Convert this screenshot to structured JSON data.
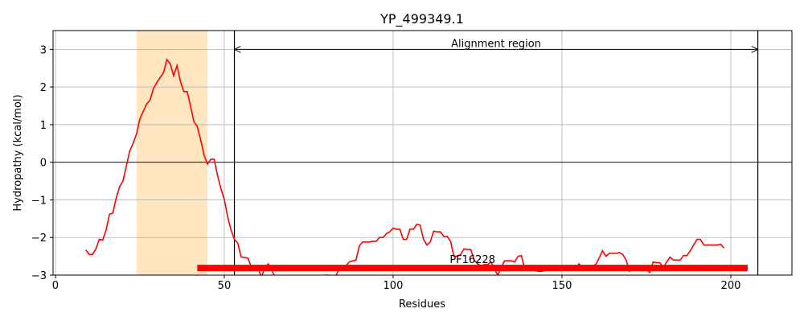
{
  "chart_data": {
    "type": "line",
    "title": "YP_499349.1",
    "x_label": "Residues",
    "y_label": "Hydropathy (kcal/mol)",
    "x": [
      9,
      10,
      11,
      12,
      13,
      14,
      15,
      16,
      17,
      18,
      19,
      20,
      21,
      22,
      23,
      24,
      25,
      26,
      27,
      28,
      29,
      30,
      31,
      32,
      33,
      34,
      35,
      36,
      37,
      38,
      39,
      40,
      41,
      42,
      43,
      44,
      45,
      46,
      47,
      48,
      49,
      50,
      51,
      52,
      53,
      54,
      55,
      56,
      57,
      58,
      59,
      60,
      61,
      62,
      63,
      64,
      65,
      66,
      67,
      68,
      69,
      70,
      71,
      72,
      73,
      74,
      75,
      76,
      77,
      78,
      79,
      80,
      81,
      82,
      83,
      84,
      85,
      86,
      87,
      88,
      89,
      90,
      91,
      92,
      93,
      94,
      95,
      96,
      97,
      98,
      99,
      100,
      101,
      102,
      103,
      104,
      105,
      106,
      107,
      108,
      109,
      110,
      111,
      112,
      113,
      114,
      115,
      116,
      117,
      118,
      119,
      120,
      121,
      122,
      123,
      124,
      125,
      126,
      127,
      128,
      129,
      130,
      131,
      132,
      133,
      134,
      135,
      136,
      137,
      138,
      139,
      140,
      141,
      142,
      143,
      144,
      145,
      146,
      147,
      148,
      149,
      150,
      151,
      152,
      153,
      154,
      155,
      156,
      157,
      158,
      159,
      160,
      161,
      162,
      163,
      164,
      165,
      166,
      167,
      168,
      169,
      170,
      171,
      172,
      173,
      174,
      175,
      176,
      177,
      178,
      179,
      180,
      181,
      182,
      183,
      184,
      185,
      186,
      187,
      188,
      189,
      190,
      191,
      192,
      193,
      194,
      195,
      196,
      197,
      198
    ],
    "series": [
      {
        "color": "#ff0000",
        "values": [
          -2.33,
          -2.45,
          -2.45,
          -2.3,
          -2.05,
          -2.07,
          -1.8,
          -1.38,
          -1.35,
          -0.95,
          -0.65,
          -0.5,
          -0.1,
          0.3,
          0.5,
          0.75,
          1.15,
          1.35,
          1.55,
          1.65,
          1.95,
          2.12,
          2.25,
          2.38,
          2.73,
          2.62,
          2.3,
          2.57,
          2.15,
          1.88,
          1.88,
          1.5,
          1.08,
          0.95,
          0.6,
          0.2,
          -0.05,
          0.08,
          0.08,
          -0.35,
          -0.7,
          -0.98,
          -1.45,
          -1.8,
          -2.05,
          -2.15,
          -2.52,
          -2.53,
          -2.55,
          -2.78,
          -2.85,
          -2.82,
          -3.05,
          -2.8,
          -2.7,
          -2.85,
          -3.05,
          -3.1,
          -3.15,
          -3.12,
          -3.1,
          -3.15,
          -3.1,
          -3.12,
          -3.1,
          -3.15,
          -3.12,
          -3.1,
          -3.12,
          -3.1,
          -3.05,
          -3.0,
          -3.0,
          -3.05,
          -3.02,
          -2.85,
          -2.78,
          -2.75,
          -2.65,
          -2.62,
          -2.6,
          -2.22,
          -2.12,
          -2.12,
          -2.12,
          -2.1,
          -2.1,
          -2.0,
          -2.0,
          -1.9,
          -1.85,
          -1.75,
          -1.78,
          -1.78,
          -2.05,
          -2.05,
          -1.78,
          -1.78,
          -1.65,
          -1.67,
          -2.05,
          -2.2,
          -2.12,
          -1.83,
          -1.85,
          -1.85,
          -1.97,
          -1.97,
          -2.1,
          -2.5,
          -2.5,
          -2.45,
          -2.3,
          -2.32,
          -2.32,
          -2.6,
          -2.7,
          -2.75,
          -2.72,
          -2.72,
          -2.65,
          -2.85,
          -3.0,
          -2.8,
          -2.62,
          -2.62,
          -2.62,
          -2.65,
          -2.5,
          -2.48,
          -2.85,
          -2.88,
          -2.85,
          -2.88,
          -2.9,
          -2.9,
          -2.88,
          -2.86,
          -2.86,
          -2.85,
          -2.88,
          -2.85,
          -2.82,
          -2.82,
          -2.88,
          -2.85,
          -2.7,
          -2.78,
          -2.78,
          -2.75,
          -2.75,
          -2.72,
          -2.55,
          -2.35,
          -2.5,
          -2.42,
          -2.42,
          -2.42,
          -2.4,
          -2.45,
          -2.6,
          -2.9,
          -2.85,
          -2.85,
          -2.75,
          -2.85,
          -2.85,
          -2.93,
          -2.65,
          -2.67,
          -2.67,
          -2.8,
          -2.65,
          -2.52,
          -2.6,
          -2.6,
          -2.6,
          -2.48,
          -2.48,
          -2.35,
          -2.2,
          -2.05,
          -2.05,
          -2.2,
          -2.2,
          -2.2,
          -2.2,
          -2.2,
          -2.18,
          -2.28
        ]
      }
    ],
    "xlim": [
      -0.7,
      218.1
    ],
    "ylim": [
      -3,
      3.5
    ],
    "xticks": [
      0,
      50,
      100,
      150,
      200
    ],
    "yticks": [
      {
        "value": -3,
        "label": "−3"
      },
      {
        "value": -2,
        "label": "−2"
      },
      {
        "value": -1,
        "label": "−1"
      },
      0,
      1,
      2,
      3
    ],
    "grid": true,
    "hline": 0,
    "shaded_region": {
      "start": 24,
      "end": 45,
      "color": "#ffe5c0"
    },
    "alignment_region": {
      "label": "Alignment region",
      "start": 53,
      "end": 208,
      "y": 3
    },
    "domain": {
      "label": "PF16228",
      "start": 42,
      "end": 205,
      "y": -2.81,
      "color": "#ff0000"
    }
  }
}
